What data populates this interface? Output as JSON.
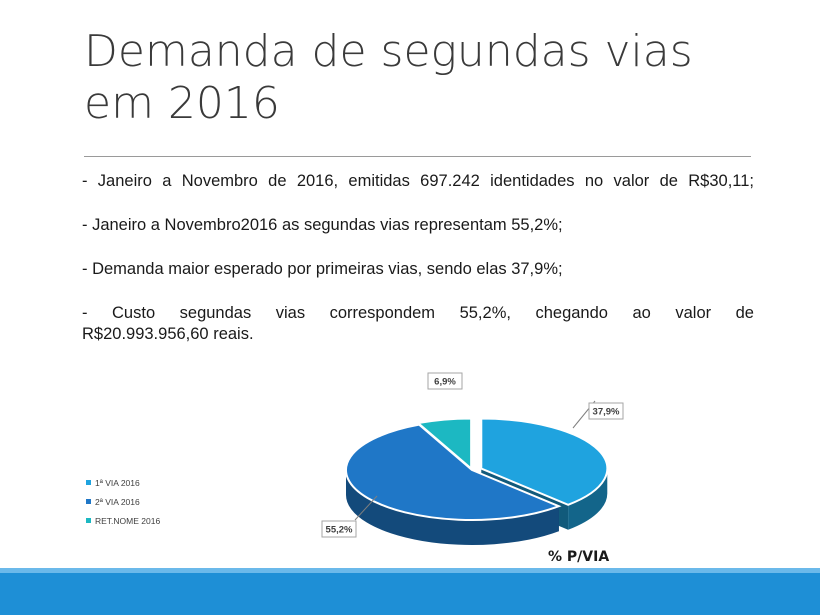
{
  "slide": {
    "title_line1": "Demanda de segundas vias",
    "title_line2": "em 2016"
  },
  "bullets": [
    {
      "lines": [
        "- Janeiro a Novembro de 2016, emitidas 697.242 identidades no valor de R$30,11;"
      ]
    },
    {
      "lines": [
        "- Janeiro a Novembro2016 as segundas vias representam 55,2%;"
      ]
    },
    {
      "lines": [
        "- Demanda maior esperado por primeiras vias, sendo elas 37,9%;"
      ]
    },
    {
      "lines": [
        "- Custo segundas vias correspondem 55,2%, chegando ao valor de",
        "R$20.993.956,60 reais."
      ]
    }
  ],
  "chart_data": {
    "type": "pie",
    "title": "% P/VIA",
    "categories": [
      "1ª VIA 2016",
      "2ª VIA 2016",
      "RET.NOME 2016"
    ],
    "values": [
      37.9,
      55.2,
      6.9
    ],
    "data_labels": [
      "37,9%",
      "55,2%",
      "6,9%"
    ],
    "colors": [
      "#1fa3df",
      "#1f77c7",
      "#1cb8c2"
    ],
    "legend_position": "left",
    "three_d": true
  },
  "theme": {
    "footer_color": "#1e8fd6",
    "footer_highlight": "#6bb9ea"
  }
}
